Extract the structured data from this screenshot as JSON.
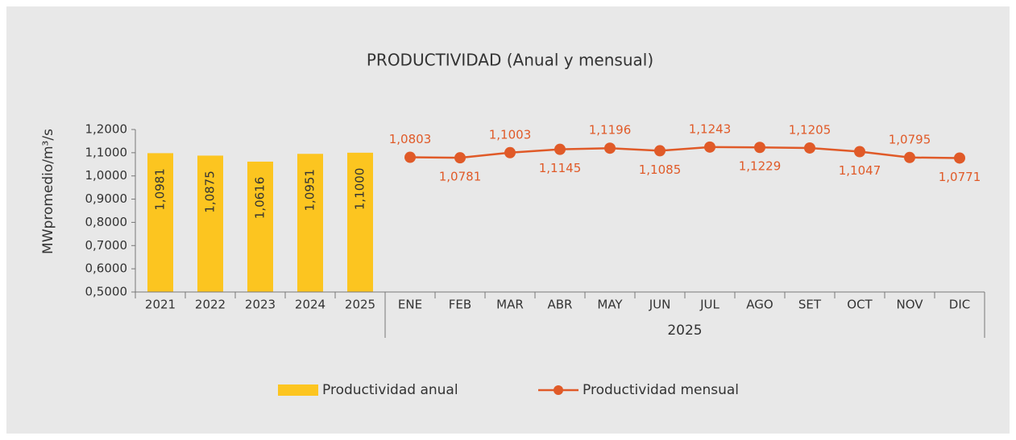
{
  "chart_data": {
    "type": "bar_line",
    "title": "PRODUCTIVIDAD (Anual y mensual)",
    "y_label": "MWpromedio/m³/s",
    "categories": [
      "2021",
      "2022",
      "2023",
      "2024",
      "2025",
      "ENE",
      "FEB",
      "MAR",
      "ABR",
      "MAY",
      "JUN",
      "JUL",
      "AGO",
      "SET",
      "OCT",
      "NOV",
      "DIC"
    ],
    "x_group_label": "2025",
    "series": [
      {
        "name": "Productividad anual",
        "type": "bar",
        "color": "#fcc520",
        "values": [
          1.0981,
          1.0875,
          1.0616,
          1.0951,
          1.1,
          null,
          null,
          null,
          null,
          null,
          null,
          null,
          null,
          null,
          null,
          null,
          null
        ],
        "value_labels": [
          "1,0981",
          "1,0875",
          "1,0616",
          "1,0951",
          "1,1000",
          null,
          null,
          null,
          null,
          null,
          null,
          null,
          null,
          null,
          null,
          null,
          null
        ]
      },
      {
        "name": "Productividad mensual",
        "type": "line",
        "color": "#e05a28",
        "values": [
          null,
          null,
          null,
          null,
          null,
          1.0803,
          1.0781,
          1.1003,
          1.1145,
          1.1196,
          1.1085,
          1.1243,
          1.1229,
          1.1205,
          1.1047,
          1.0795,
          1.0771
        ],
        "value_labels": [
          null,
          null,
          null,
          null,
          null,
          "1,0803",
          "1,0781",
          "1,1003",
          "1,1145",
          "1,1196",
          "1,1085",
          "1,1243",
          "1,1229",
          "1,1205",
          "1,1047",
          "1,0795",
          "1,0771"
        ]
      }
    ],
    "ylim": [
      0.5,
      1.2
    ],
    "yticks": [
      {
        "value": 0.5,
        "label": "0,5000"
      },
      {
        "value": 0.6,
        "label": "0,6000"
      },
      {
        "value": 0.7,
        "label": "0,7000"
      },
      {
        "value": 0.8,
        "label": "0,8000"
      },
      {
        "value": 0.9,
        "label": "0,9000"
      },
      {
        "value": 1.0,
        "label": "1,0000"
      },
      {
        "value": 1.1,
        "label": "1,1000"
      },
      {
        "value": 1.2,
        "label": "1,2000"
      }
    ],
    "grid": false,
    "legend": "bottom"
  }
}
